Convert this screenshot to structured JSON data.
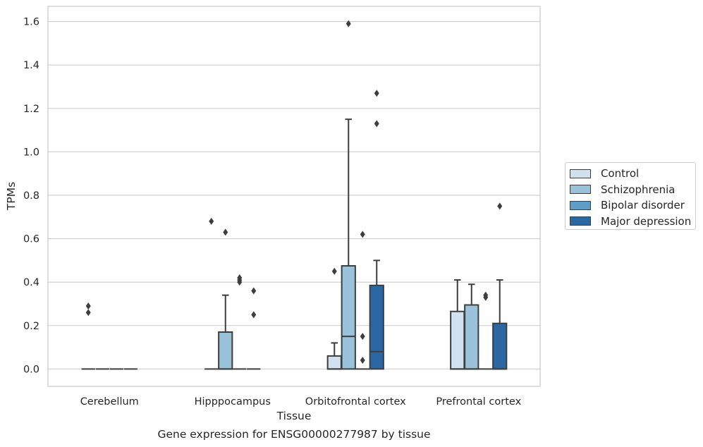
{
  "chart_data": {
    "type": "box",
    "title": "",
    "xlabel": "Tissue",
    "ylabel": "TPMs",
    "caption": "Gene expression for ENSG00000277987 by tissue",
    "ylim": [
      -0.08,
      1.67
    ],
    "yticks": [
      0.0,
      0.2,
      0.4,
      0.6,
      0.8,
      1.0,
      1.2,
      1.4,
      1.6
    ],
    "ytick_labels": [
      "0.0",
      "0.2",
      "0.4",
      "0.6",
      "0.8",
      "1.0",
      "1.2",
      "1.4",
      "1.6"
    ],
    "grid": "horizontal",
    "legend_position": "right",
    "categories": [
      "Cerebellum",
      "Hipppocampus",
      "Orbitofrontal cortex",
      "Prefrontal cortex"
    ],
    "series": [
      {
        "name": "Control",
        "color": "#d2e1f0",
        "boxes": [
          {
            "q1": 0,
            "median": 0,
            "q3": 0,
            "whisker_low": 0,
            "whisker_high": 0,
            "outliers": [
              0.29,
              0.26
            ]
          },
          {
            "q1": 0,
            "median": 0,
            "q3": 0,
            "whisker_low": 0,
            "whisker_high": 0,
            "outliers": [
              0.68
            ]
          },
          {
            "q1": 0,
            "median": 0,
            "q3": 0.06,
            "whisker_low": 0,
            "whisker_high": 0.12,
            "outliers": [
              0.45
            ]
          },
          {
            "q1": 0,
            "median": 0,
            "q3": 0.265,
            "whisker_low": 0,
            "whisker_high": 0.41,
            "outliers": []
          }
        ]
      },
      {
        "name": "Schizophrenia",
        "color": "#9ac3db",
        "boxes": [
          {
            "q1": 0,
            "median": 0,
            "q3": 0,
            "whisker_low": 0,
            "whisker_high": 0,
            "outliers": []
          },
          {
            "q1": 0,
            "median": 0,
            "q3": 0.17,
            "whisker_low": 0,
            "whisker_high": 0.34,
            "outliers": [
              0.63
            ]
          },
          {
            "q1": 0,
            "median": 0.15,
            "q3": 0.475,
            "whisker_low": 0,
            "whisker_high": 1.15,
            "outliers": [
              1.59
            ]
          },
          {
            "q1": 0,
            "median": 0,
            "q3": 0.295,
            "whisker_low": 0,
            "whisker_high": 0.39,
            "outliers": []
          }
        ]
      },
      {
        "name": "Bipolar disorder",
        "color": "#5d9dc8",
        "boxes": [
          {
            "q1": 0,
            "median": 0,
            "q3": 0,
            "whisker_low": 0,
            "whisker_high": 0,
            "outliers": []
          },
          {
            "q1": 0,
            "median": 0,
            "q3": 0,
            "whisker_low": 0,
            "whisker_high": 0,
            "outliers": [
              0.42,
              0.41,
              0.4
            ]
          },
          {
            "q1": 0,
            "median": 0,
            "q3": 0,
            "whisker_low": 0,
            "whisker_high": 0,
            "outliers": [
              0.62,
              0.15,
              0.04
            ]
          },
          {
            "q1": 0,
            "median": 0,
            "q3": 0,
            "whisker_low": 0,
            "whisker_high": 0,
            "outliers": [
              0.34,
              0.33
            ]
          }
        ]
      },
      {
        "name": "Major depression",
        "color": "#2a67a3",
        "boxes": [
          {
            "q1": 0,
            "median": 0,
            "q3": 0,
            "whisker_low": 0,
            "whisker_high": 0,
            "outliers": []
          },
          {
            "q1": 0,
            "median": 0,
            "q3": 0,
            "whisker_low": 0,
            "whisker_high": 0,
            "outliers": [
              0.36,
              0.25
            ]
          },
          {
            "q1": 0,
            "median": 0.08,
            "q3": 0.385,
            "whisker_low": 0,
            "whisker_high": 0.5,
            "outliers": [
              1.27,
              1.13
            ]
          },
          {
            "q1": 0,
            "median": 0,
            "q3": 0.21,
            "whisker_low": 0,
            "whisker_high": 0.41,
            "outliers": [
              0.75
            ]
          }
        ]
      }
    ]
  }
}
